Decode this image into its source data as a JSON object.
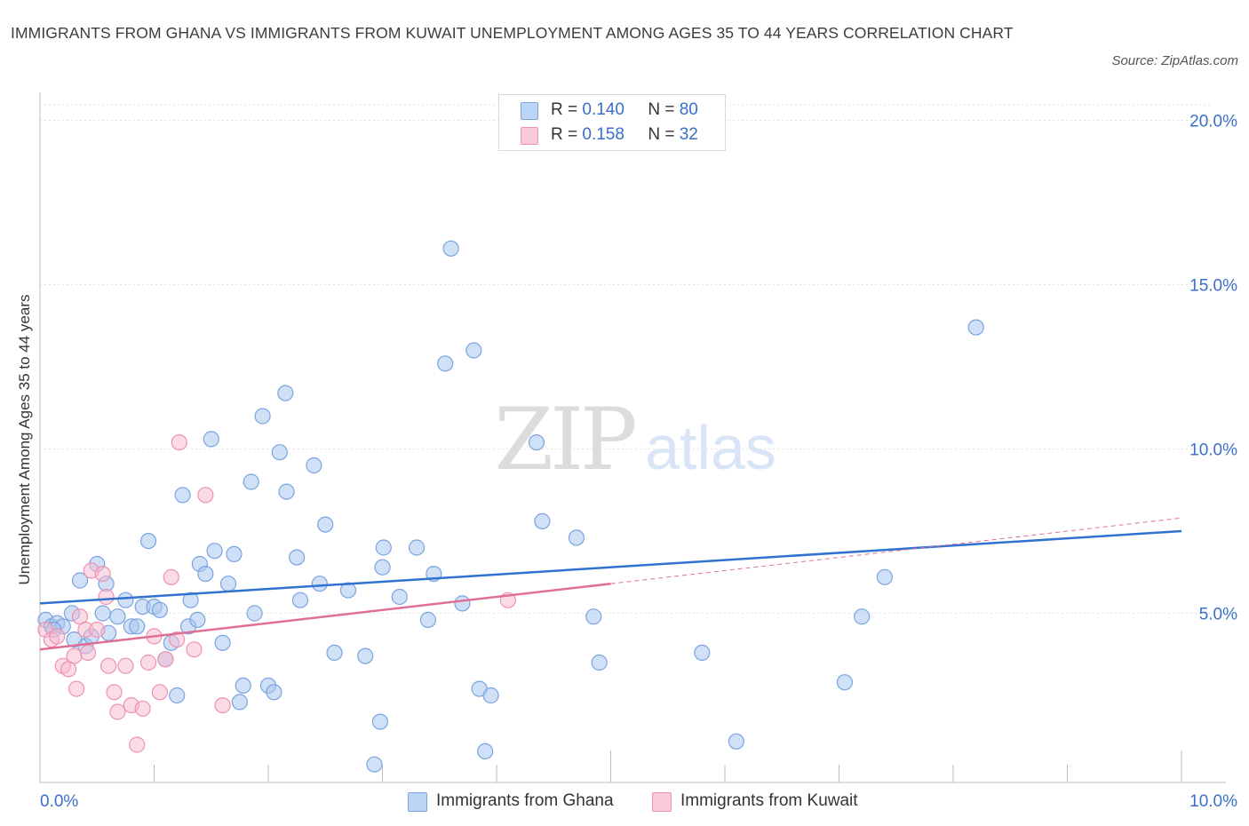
{
  "title": "IMMIGRANTS FROM GHANA VS IMMIGRANTS FROM KUWAIT UNEMPLOYMENT AMONG AGES 35 TO 44 YEARS CORRELATION CHART",
  "source": "Source: ZipAtlas.com",
  "watermark": {
    "zip": "ZIP",
    "atlas": "atlas"
  },
  "legend": {
    "r_label": "R =",
    "n_label": "N =",
    "ghana": {
      "r": "0.140",
      "n": "80"
    },
    "kuwait": {
      "r": "0.158",
      "n": "32"
    }
  },
  "colors": {
    "ghana_fill": "#a9c6f0",
    "ghana_stroke": "#7aa4e0",
    "ghana_line": "#2f72cf",
    "kuwait_fill": "#f7b9cd",
    "kuwait_stroke": "#ee92b0",
    "kuwait_line": "#e06f96",
    "axis_text": "#3a6fc9"
  },
  "chart_data": {
    "type": "scatter",
    "title": "IMMIGRANTS FROM GHANA VS IMMIGRANTS FROM KUWAIT UNEMPLOYMENT AMONG AGES 35 TO 44 YEARS CORRELATION CHART",
    "xlabel": "",
    "ylabel": "Unemployment Among Ages 35 to 44 years",
    "xlim": [
      0,
      10
    ],
    "ylim": [
      0,
      20
    ],
    "x_tick_labels": [
      "0.0%",
      "10.0%"
    ],
    "y_ticks": [
      5,
      10,
      15,
      20
    ],
    "y_tick_labels": [
      "5.0%",
      "10.0%",
      "15.0%",
      "20.0%"
    ],
    "legend": [
      "Immigrants from Ghana",
      "Immigrants from Kuwait"
    ],
    "series": [
      {
        "name": "Immigrants from Ghana",
        "r": 0.14,
        "n": 80,
        "trend": {
          "x": [
            0,
            10
          ],
          "y": [
            5.3,
            7.5
          ]
        },
        "points": [
          [
            0.05,
            4.8
          ],
          [
            0.1,
            4.6
          ],
          [
            0.15,
            4.7
          ],
          [
            0.2,
            4.6
          ],
          [
            0.28,
            5.0
          ],
          [
            0.3,
            4.2
          ],
          [
            0.35,
            6.0
          ],
          [
            0.4,
            4.0
          ],
          [
            0.45,
            4.3
          ],
          [
            0.5,
            6.5
          ],
          [
            0.55,
            5.0
          ],
          [
            0.58,
            5.9
          ],
          [
            0.6,
            4.4
          ],
          [
            0.68,
            4.9
          ],
          [
            0.75,
            5.4
          ],
          [
            0.8,
            4.6
          ],
          [
            0.85,
            4.6
          ],
          [
            0.9,
            5.2
          ],
          [
            0.95,
            7.2
          ],
          [
            1.0,
            5.2
          ],
          [
            1.05,
            5.1
          ],
          [
            1.1,
            3.6
          ],
          [
            1.15,
            4.1
          ],
          [
            1.2,
            2.5
          ],
          [
            1.25,
            8.6
          ],
          [
            1.3,
            4.6
          ],
          [
            1.32,
            5.4
          ],
          [
            1.38,
            4.8
          ],
          [
            1.4,
            6.5
          ],
          [
            1.45,
            6.2
          ],
          [
            1.5,
            10.3
          ],
          [
            1.53,
            6.9
          ],
          [
            1.6,
            4.1
          ],
          [
            1.65,
            5.9
          ],
          [
            1.7,
            6.8
          ],
          [
            1.75,
            2.3
          ],
          [
            1.78,
            2.8
          ],
          [
            1.85,
            9.0
          ],
          [
            1.88,
            5.0
          ],
          [
            1.95,
            11.0
          ],
          [
            2.0,
            2.8
          ],
          [
            2.05,
            2.6
          ],
          [
            2.1,
            9.9
          ],
          [
            2.15,
            11.7
          ],
          [
            2.16,
            8.7
          ],
          [
            2.25,
            6.7
          ],
          [
            2.28,
            5.4
          ],
          [
            2.4,
            9.5
          ],
          [
            2.45,
            5.9
          ],
          [
            2.5,
            7.7
          ],
          [
            2.58,
            3.8
          ],
          [
            2.7,
            5.7
          ],
          [
            2.85,
            3.7
          ],
          [
            2.93,
            0.4
          ],
          [
            2.98,
            1.7
          ],
          [
            3.0,
            6.4
          ],
          [
            3.01,
            7.0
          ],
          [
            3.15,
            5.5
          ],
          [
            3.3,
            7.0
          ],
          [
            3.4,
            4.8
          ],
          [
            3.45,
            6.2
          ],
          [
            3.55,
            12.6
          ],
          [
            3.6,
            16.1
          ],
          [
            3.7,
            5.3
          ],
          [
            3.8,
            13.0
          ],
          [
            3.85,
            2.7
          ],
          [
            3.9,
            0.8
          ],
          [
            3.95,
            2.5
          ],
          [
            4.35,
            10.2
          ],
          [
            4.4,
            7.8
          ],
          [
            4.7,
            7.3
          ],
          [
            4.85,
            4.9
          ],
          [
            4.9,
            3.5
          ],
          [
            5.8,
            3.8
          ],
          [
            6.1,
            1.1
          ],
          [
            7.05,
            2.9
          ],
          [
            7.2,
            4.9
          ],
          [
            7.4,
            6.1
          ],
          [
            8.2,
            13.7
          ],
          [
            0.12,
            4.5
          ]
        ]
      },
      {
        "name": "Immigrants from Kuwait",
        "r": 0.158,
        "n": 32,
        "trend_solid": {
          "x": [
            0,
            5.0
          ],
          "y": [
            3.9,
            5.9
          ]
        },
        "trend_dashed": {
          "x": [
            5.0,
            10
          ],
          "y": [
            5.9,
            7.9
          ]
        },
        "points": [
          [
            0.05,
            4.5
          ],
          [
            0.1,
            4.2
          ],
          [
            0.15,
            4.3
          ],
          [
            0.2,
            3.4
          ],
          [
            0.25,
            3.3
          ],
          [
            0.3,
            3.7
          ],
          [
            0.32,
            2.7
          ],
          [
            0.35,
            4.9
          ],
          [
            0.4,
            4.5
          ],
          [
            0.42,
            3.8
          ],
          [
            0.45,
            6.3
          ],
          [
            0.5,
            4.5
          ],
          [
            0.55,
            6.2
          ],
          [
            0.58,
            5.5
          ],
          [
            0.6,
            3.4
          ],
          [
            0.65,
            2.6
          ],
          [
            0.68,
            2.0
          ],
          [
            0.75,
            3.4
          ],
          [
            0.8,
            2.2
          ],
          [
            0.85,
            1.0
          ],
          [
            0.9,
            2.1
          ],
          [
            0.95,
            3.5
          ],
          [
            1.0,
            4.3
          ],
          [
            1.05,
            2.6
          ],
          [
            1.1,
            3.6
          ],
          [
            1.15,
            6.1
          ],
          [
            1.2,
            4.2
          ],
          [
            1.22,
            10.2
          ],
          [
            1.35,
            3.9
          ],
          [
            1.45,
            8.6
          ],
          [
            1.6,
            2.2
          ],
          [
            4.1,
            5.4
          ]
        ]
      }
    ]
  },
  "axes": {
    "x_left_label": "0.0%",
    "x_right_label": "10.0%"
  },
  "bottom_legend": {
    "ghana": "Immigrants from Ghana",
    "kuwait": "Immigrants from Kuwait"
  }
}
